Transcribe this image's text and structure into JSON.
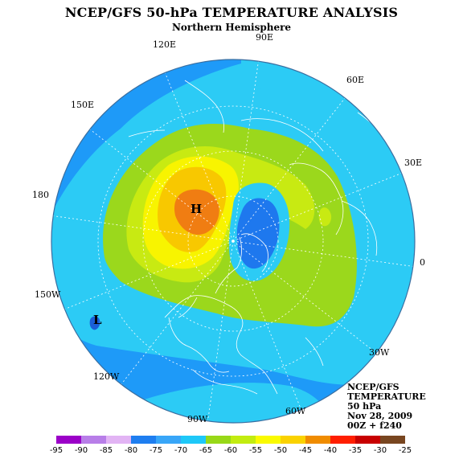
{
  "title": "NCEP/GFS 50-hPa TEMPERATURE ANALYSIS",
  "subtitle": "Northern Hemisphere",
  "longitude_labels": [
    {
      "id": "90E",
      "text": "90E"
    },
    {
      "id": "120E",
      "text": "120E"
    },
    {
      "id": "60E",
      "text": "60E"
    },
    {
      "id": "150E",
      "text": "150E"
    },
    {
      "id": "30E",
      "text": "30E"
    },
    {
      "id": "180",
      "text": "180"
    },
    {
      "id": "0",
      "text": "0"
    },
    {
      "id": "150W",
      "text": "150W"
    },
    {
      "id": "30W",
      "text": "30W"
    },
    {
      "id": "120W",
      "text": "120W"
    },
    {
      "id": "60W",
      "text": "60W"
    },
    {
      "id": "90W",
      "text": "90W"
    }
  ],
  "markers": {
    "high": "H",
    "low": "L"
  },
  "info": {
    "line1": "NCEP/GFS",
    "line2": "TEMPERATURE",
    "line3": "50 hPa",
    "line4": "Nov 28, 2009",
    "line5": "00Z + f240"
  },
  "colorbar": {
    "ticks": [
      "-95",
      "-90",
      "-85",
      "-80",
      "-75",
      "-70",
      "-65",
      "-60",
      "-55",
      "-50",
      "-45",
      "-40",
      "-35",
      "-30",
      "-25"
    ],
    "colors": [
      "#9b00c8",
      "#b87ee8",
      "#e2b4f4",
      "#1e7ef0",
      "#38a6f8",
      "#1ec8f8",
      "#98d818",
      "#c2ec10",
      "#fafa00",
      "#fad200",
      "#f08c00",
      "#ff1e00",
      "#c80000",
      "#784620"
    ]
  },
  "colors": {
    "ocean_base": "#1e9af8",
    "cyan": "#2ccbf5",
    "lime": "#9bd81c",
    "yellow_green": "#c8ea12",
    "yellow": "#f8f400",
    "gold": "#f8c800",
    "orange": "#f07d12",
    "deep_blue": "#1e78ee",
    "coast": "#ffffff"
  }
}
